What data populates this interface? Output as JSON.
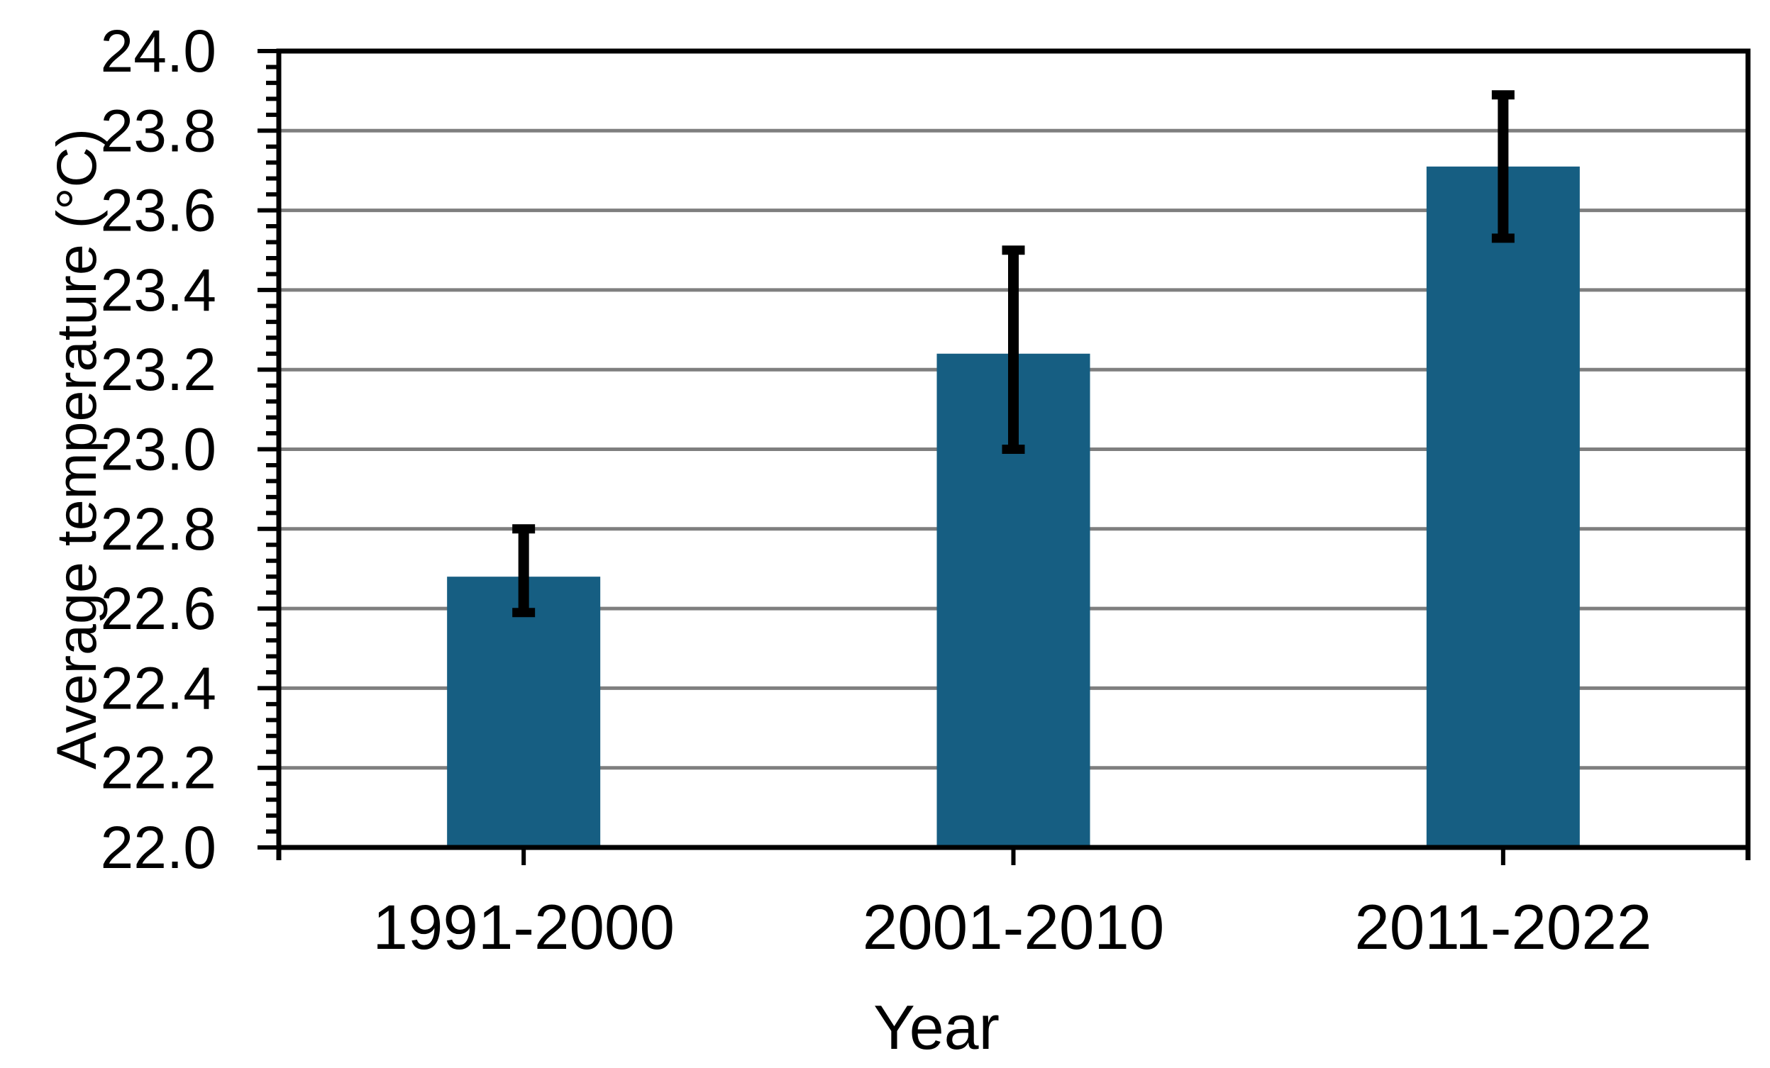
{
  "chart_data": {
    "type": "bar",
    "title": "",
    "xlabel": "Year",
    "ylabel": "Average temperature (°C)",
    "categories": [
      "1991-2000",
      "2001-2010",
      "2011-2022"
    ],
    "values": [
      22.68,
      23.24,
      23.71
    ],
    "error_low": [
      22.59,
      23.0,
      23.53
    ],
    "error_high": [
      22.8,
      23.5,
      23.89
    ],
    "ylim": [
      22.0,
      24.0
    ],
    "y_major_step": 0.2,
    "y_minor_step": 0.04,
    "y_tick_labels": [
      "22.0",
      "22.2",
      "22.4",
      "22.6",
      "22.8",
      "23.0",
      "23.2",
      "23.4",
      "23.6",
      "23.8",
      "24.0"
    ],
    "grid": "horizontal-major",
    "legend_position": "none",
    "colors": {
      "bar_fill": "#165E82",
      "gridline": "#7F7F7F",
      "axis": "#000000",
      "error_bar": "#000000",
      "background": "#FFFFFF"
    }
  }
}
